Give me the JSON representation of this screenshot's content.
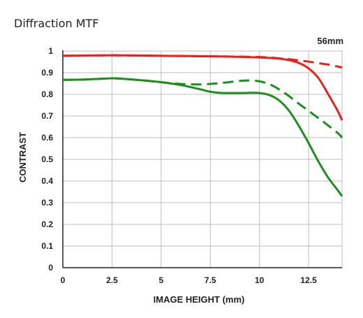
{
  "page": {
    "title": "Diffraction MTF",
    "focal_length_label": "56mm"
  },
  "chart_data": {
    "type": "line",
    "xlabel": "IMAGE HEIGHT (mm)",
    "ylabel": "CONTRAST",
    "xlim": [
      0,
      14.2
    ],
    "ylim": [
      0,
      1
    ],
    "x_ticks": [
      0,
      2.5,
      5,
      7.5,
      10,
      12.5
    ],
    "x_tick_labels": [
      "0",
      "2.5",
      "5",
      "7.5",
      "10",
      "12.5"
    ],
    "y_ticks": [
      0,
      0.1,
      0.2,
      0.3,
      0.4,
      0.5,
      0.6,
      0.7,
      0.8,
      0.9,
      1
    ],
    "y_tick_labels": [
      "0",
      "0.1",
      "0.2",
      "0.3",
      "0.4",
      "0.5",
      "0.6",
      "0.7",
      "0.8",
      "0.9",
      "1"
    ],
    "grid": true,
    "series": [
      {
        "color": "#e8211b",
        "dash": "solid",
        "x": [
          0,
          1,
          2,
          3,
          4,
          5,
          6,
          7,
          8,
          9,
          10,
          10.5,
          11,
          11.5,
          12,
          12.5,
          13,
          13.5,
          14,
          14.2
        ],
        "y": [
          0.978,
          0.979,
          0.98,
          0.98,
          0.979,
          0.978,
          0.977,
          0.976,
          0.975,
          0.973,
          0.97,
          0.968,
          0.965,
          0.958,
          0.945,
          0.92,
          0.875,
          0.8,
          0.72,
          0.68
        ]
      },
      {
        "color": "#e8211b",
        "dash": "dashed",
        "x": [
          0,
          1,
          2,
          3,
          4,
          5,
          6,
          7,
          8,
          9,
          10,
          10.5,
          11,
          11.5,
          12,
          12.5,
          13,
          13.5,
          14,
          14.2
        ],
        "y": [
          0.978,
          0.979,
          0.98,
          0.98,
          0.979,
          0.978,
          0.977,
          0.976,
          0.975,
          0.974,
          0.972,
          0.97,
          0.966,
          0.962,
          0.957,
          0.951,
          0.944,
          0.937,
          0.928,
          0.924
        ]
      },
      {
        "color": "#1e8f1e",
        "dash": "solid",
        "x": [
          0,
          1,
          2,
          2.5,
          3,
          4,
          5,
          6,
          7,
          7.5,
          8,
          9,
          9.5,
          10,
          10.5,
          11,
          11.5,
          12,
          12.5,
          13,
          13.5,
          14,
          14.2
        ],
        "y": [
          0.867,
          0.868,
          0.872,
          0.874,
          0.872,
          0.865,
          0.856,
          0.843,
          0.823,
          0.812,
          0.807,
          0.806,
          0.807,
          0.806,
          0.797,
          0.772,
          0.725,
          0.655,
          0.575,
          0.49,
          0.415,
          0.355,
          0.33
        ]
      },
      {
        "color": "#1e8f1e",
        "dash": "dashed",
        "x": [
          0,
          1,
          2,
          2.5,
          3,
          4,
          5,
          6,
          7,
          8,
          9,
          9.5,
          10,
          10.5,
          11,
          11.5,
          12,
          12.5,
          13,
          13.5,
          14,
          14.2
        ],
        "y": [
          0.867,
          0.868,
          0.872,
          0.874,
          0.872,
          0.865,
          0.856,
          0.848,
          0.846,
          0.852,
          0.862,
          0.864,
          0.86,
          0.847,
          0.823,
          0.792,
          0.757,
          0.724,
          0.69,
          0.656,
          0.62,
          0.6
        ]
      }
    ]
  }
}
